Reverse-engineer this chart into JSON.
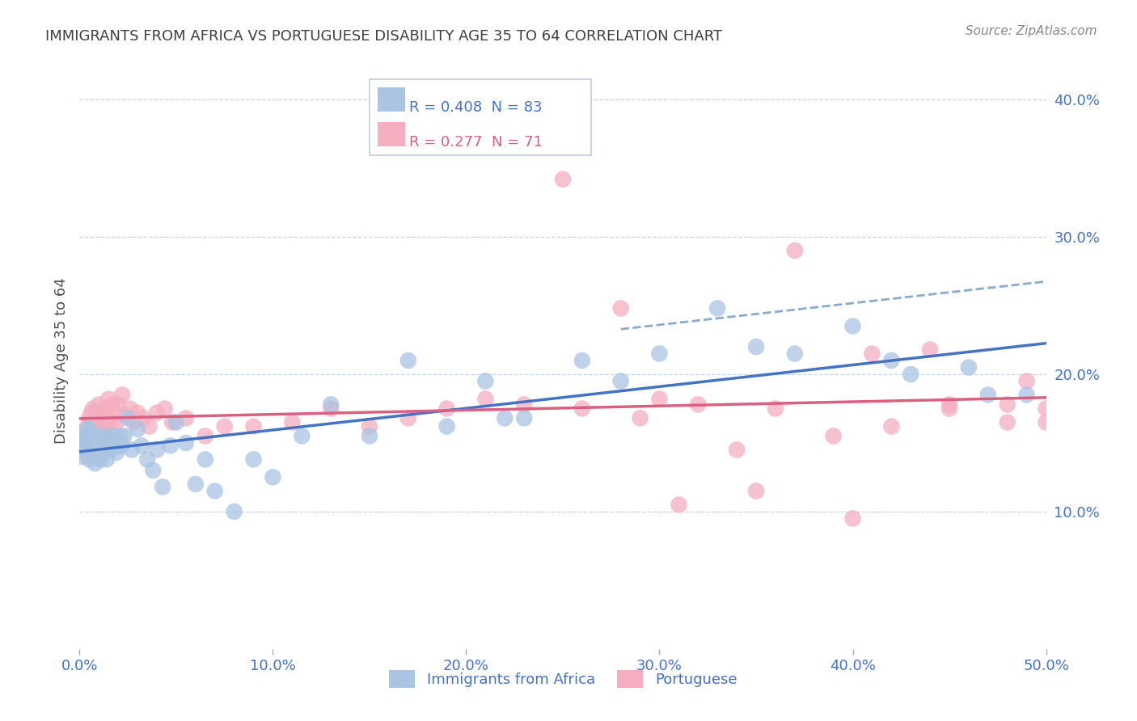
{
  "title": "IMMIGRANTS FROM AFRICA VS PORTUGUESE DISABILITY AGE 35 TO 64 CORRELATION CHART",
  "source": "Source: ZipAtlas.com",
  "ylabel": "Disability Age 35 to 64",
  "xlim": [
    0,
    0.5
  ],
  "ylim": [
    0.0,
    0.42
  ],
  "xticks": [
    0.0,
    0.1,
    0.2,
    0.3,
    0.4,
    0.5
  ],
  "xticklabels": [
    "0.0%",
    "10.0%",
    "20.0%",
    "30.0%",
    "40.0%",
    "50.0%"
  ],
  "yticks": [
    0.1,
    0.2,
    0.3,
    0.4
  ],
  "yticklabels": [
    "10.0%",
    "20.0%",
    "30.0%",
    "40.0%"
  ],
  "series1_label": "Immigrants from Africa",
  "series2_label": "Portuguese",
  "series1_R": "0.408",
  "series1_N": "83",
  "series2_R": "0.277",
  "series2_N": "71",
  "series1_color": "#aac4e2",
  "series2_color": "#f5aec0",
  "series1_line_color": "#4472c4",
  "series2_line_color": "#d96080",
  "series1_dash_color": "#8aaad0",
  "background_color": "#ffffff",
  "grid_color": "#c8d4e8",
  "title_color": "#404040",
  "tick_color": "#4472c4",
  "legend_R_color1": "#4472c4",
  "legend_R_color2": "#d96080",
  "series1_x": [
    0.001,
    0.002,
    0.002,
    0.003,
    0.003,
    0.003,
    0.004,
    0.004,
    0.004,
    0.005,
    0.005,
    0.005,
    0.005,
    0.006,
    0.006,
    0.006,
    0.007,
    0.007,
    0.007,
    0.008,
    0.008,
    0.008,
    0.009,
    0.009,
    0.01,
    0.01,
    0.01,
    0.011,
    0.011,
    0.012,
    0.012,
    0.013,
    0.013,
    0.014,
    0.014,
    0.015,
    0.015,
    0.016,
    0.017,
    0.018,
    0.018,
    0.019,
    0.02,
    0.021,
    0.022,
    0.023,
    0.025,
    0.027,
    0.03,
    0.032,
    0.035,
    0.038,
    0.04,
    0.043,
    0.047,
    0.05,
    0.055,
    0.06,
    0.065,
    0.07,
    0.08,
    0.09,
    0.1,
    0.115,
    0.13,
    0.15,
    0.17,
    0.19,
    0.21,
    0.23,
    0.26,
    0.3,
    0.33,
    0.37,
    0.4,
    0.43,
    0.46,
    0.49,
    0.22,
    0.28,
    0.35,
    0.42,
    0.47
  ],
  "series1_y": [
    0.14,
    0.152,
    0.148,
    0.145,
    0.155,
    0.143,
    0.15,
    0.16,
    0.148,
    0.143,
    0.155,
    0.16,
    0.138,
    0.148,
    0.152,
    0.145,
    0.155,
    0.148,
    0.142,
    0.152,
    0.145,
    0.135,
    0.148,
    0.155,
    0.15,
    0.145,
    0.14,
    0.148,
    0.138,
    0.152,
    0.143,
    0.148,
    0.155,
    0.145,
    0.138,
    0.152,
    0.148,
    0.145,
    0.15,
    0.155,
    0.148,
    0.143,
    0.148,
    0.155,
    0.148,
    0.155,
    0.168,
    0.145,
    0.16,
    0.148,
    0.138,
    0.13,
    0.145,
    0.118,
    0.148,
    0.165,
    0.15,
    0.12,
    0.138,
    0.115,
    0.1,
    0.138,
    0.125,
    0.155,
    0.178,
    0.155,
    0.21,
    0.162,
    0.195,
    0.168,
    0.21,
    0.215,
    0.248,
    0.215,
    0.235,
    0.2,
    0.205,
    0.185,
    0.168,
    0.195,
    0.22,
    0.21,
    0.185
  ],
  "series2_x": [
    0.001,
    0.002,
    0.003,
    0.004,
    0.005,
    0.005,
    0.006,
    0.006,
    0.007,
    0.007,
    0.008,
    0.008,
    0.009,
    0.01,
    0.01,
    0.011,
    0.012,
    0.012,
    0.013,
    0.014,
    0.015,
    0.015,
    0.016,
    0.017,
    0.018,
    0.019,
    0.02,
    0.022,
    0.024,
    0.026,
    0.028,
    0.03,
    0.033,
    0.036,
    0.04,
    0.044,
    0.048,
    0.055,
    0.065,
    0.075,
    0.09,
    0.11,
    0.13,
    0.15,
    0.17,
    0.19,
    0.21,
    0.23,
    0.26,
    0.29,
    0.32,
    0.36,
    0.39,
    0.42,
    0.45,
    0.48,
    0.5,
    0.28,
    0.31,
    0.34,
    0.37,
    0.41,
    0.45,
    0.49,
    0.25,
    0.3,
    0.35,
    0.4,
    0.44,
    0.48,
    0.5
  ],
  "series2_y": [
    0.152,
    0.155,
    0.148,
    0.162,
    0.155,
    0.168,
    0.158,
    0.172,
    0.165,
    0.175,
    0.158,
    0.172,
    0.162,
    0.168,
    0.178,
    0.162,
    0.155,
    0.172,
    0.175,
    0.162,
    0.168,
    0.182,
    0.165,
    0.178,
    0.172,
    0.165,
    0.178,
    0.185,
    0.17,
    0.175,
    0.165,
    0.172,
    0.168,
    0.162,
    0.172,
    0.175,
    0.165,
    0.168,
    0.155,
    0.162,
    0.162,
    0.165,
    0.175,
    0.162,
    0.168,
    0.175,
    0.182,
    0.178,
    0.175,
    0.168,
    0.178,
    0.175,
    0.155,
    0.162,
    0.175,
    0.165,
    0.175,
    0.248,
    0.105,
    0.145,
    0.29,
    0.215,
    0.178,
    0.195,
    0.342,
    0.182,
    0.115,
    0.095,
    0.218,
    0.178,
    0.165
  ]
}
